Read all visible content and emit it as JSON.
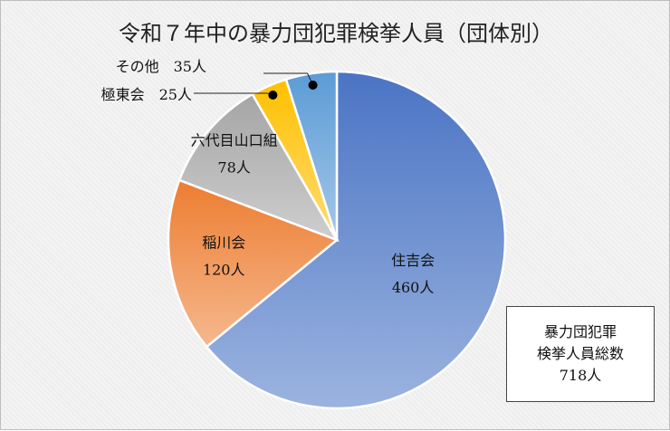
{
  "chart_data": {
    "type": "pie",
    "title": "令和７年中の暴力団犯罪検挙人員（団体別）",
    "slices": [
      {
        "label": "住吉会",
        "value": 460,
        "display": "460人",
        "color": "#4a74c4"
      },
      {
        "label": "稲川会",
        "value": 120,
        "display": "120人",
        "color": "#ed7d31"
      },
      {
        "label": "六代目山口組",
        "value": 78,
        "display": "78人",
        "color": "#a5a5a5"
      },
      {
        "label": "極東会",
        "value": 25,
        "display": "25人",
        "color": "#ffc000"
      },
      {
        "label": "その他",
        "value": 35,
        "display": "35人",
        "color": "#5b9bd5"
      }
    ],
    "total": {
      "line1": "暴力団犯罪",
      "line2": "検挙人員総数",
      "line3": "718人",
      "value": 718
    },
    "legend": "none"
  }
}
